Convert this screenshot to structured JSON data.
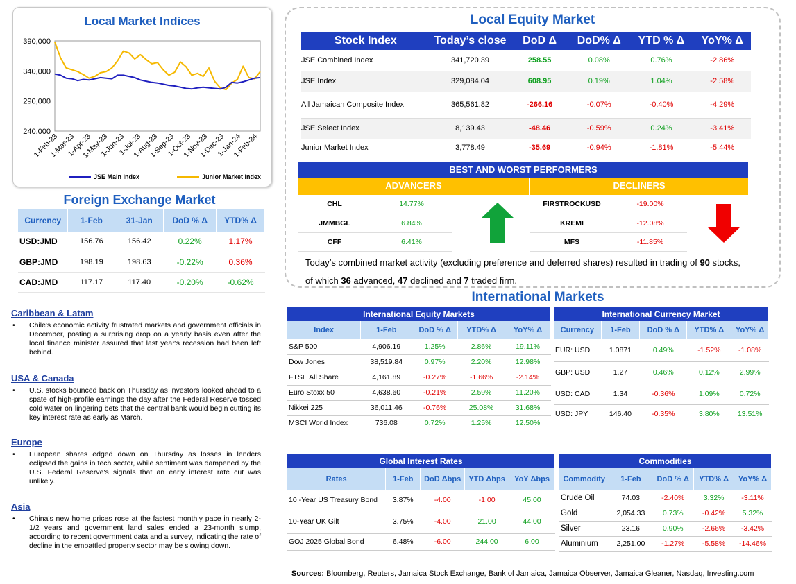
{
  "chart_panel": {
    "title": "Local Market Indices",
    "chart_data": {
      "type": "line",
      "title": "Local Market Indices",
      "x_ticks": [
        "1-Feb-23",
        "1-Mar-23",
        "1-Apr-23",
        "1-May-23",
        "1-Jun-23",
        "1-Jul-23",
        "1-Aug-23",
        "1-Sep-23",
        "1-Oct-23",
        "1-Nov-23",
        "1-Dec-23",
        "1-Jan-24",
        "1-Feb-24"
      ],
      "y_ticks": [
        "390,000",
        "340,000",
        "290,000",
        "240,000"
      ],
      "ylim": [
        240000,
        390000
      ],
      "legend_position": "bottom",
      "series": [
        {
          "name": "JSE Main Index",
          "color": "#1f1fbf",
          "values": [
            335000,
            333000,
            328000,
            327000,
            324000,
            326000,
            325000,
            327000,
            329000,
            328000,
            327000,
            333000,
            333000,
            331000,
            329000,
            325000,
            323000,
            321000,
            320000,
            318000,
            316000,
            315000,
            313000,
            311000,
            310000,
            312000,
            313000,
            312000,
            311000,
            310000,
            313000,
            321000,
            320000,
            322000,
            325000,
            328000,
            329000
          ]
        },
        {
          "name": "Junior Market Index",
          "color": "#f5b800",
          "values": [
            388000,
            362000,
            345000,
            342000,
            339000,
            334000,
            328000,
            331000,
            337000,
            339000,
            345000,
            357000,
            373000,
            370000,
            360000,
            367000,
            359000,
            352000,
            354000,
            342000,
            333000,
            338000,
            355000,
            347000,
            333000,
            336000,
            331000,
            345000,
            323000,
            312000,
            309000,
            320000,
            326000,
            348000,
            329000,
            327000,
            339000
          ]
        }
      ]
    }
  },
  "fx": {
    "title": "Foreign Exchange Market",
    "headers": [
      "Currency",
      "1-Feb",
      "31-Jan",
      "DoD % Δ",
      "YTD% Δ"
    ],
    "rows": [
      {
        "currency": "USD:JMD",
        "feb1": "156.76",
        "jan31": "156.42",
        "dod": "0.22%",
        "ytd": "1.17%",
        "dod_sign": "pos",
        "ytd_sign": "neg"
      },
      {
        "currency": "GBP:JMD",
        "feb1": "198.19",
        "jan31": "198.63",
        "dod": "-0.22%",
        "ytd": "0.36%",
        "dod_sign": "pos",
        "ytd_sign": "neg"
      },
      {
        "currency": "CAD:JMD",
        "feb1": "117.17",
        "jan31": "117.40",
        "dod": "-0.20%",
        "ytd": "-0.62%",
        "dod_sign": "pos",
        "ytd_sign": "pos"
      }
    ]
  },
  "news": [
    {
      "head": "Caribbean & Latam",
      "body": "Chile's economic activity frustrated markets and government officials in December, posting a surprising drop on a yearly basis even after the local finance minister assured that last year's recession had been left behind."
    },
    {
      "head": "USA & Canada",
      "body": "U.S. stocks bounced back on Thursday as investors looked ahead to a spate of high-profile earnings the day after the Federal Reserve tossed cold water on lingering bets that the central bank would begin cutting its key interest rate as early as March."
    },
    {
      "head": "Europe",
      "body": "European shares edged down on Thursday as losses in lenders eclipsed the gains in tech sector, while sentiment was dampened by the U.S. Federal Reserve's signals that an early interest rate cut was unlikely."
    },
    {
      "head": "Asia",
      "body": "China's new home prices rose at the fastest monthly pace in nearly 2-1/2 years and government land sales ended a 23-month slump, according to recent government data and a survey, indicating the rate of decline in the embattled property sector may be slowing down."
    }
  ],
  "equity": {
    "title": "Local Equity Market",
    "headers": [
      "Stock Index",
      "Today’s close",
      "DoD  Δ",
      "DoD% Δ",
      "YTD % Δ",
      "YoY% Δ"
    ],
    "rows": [
      {
        "name": "JSE Combined Index",
        "close": "341,720.39",
        "dod": "258.55",
        "dodp": "0.08%",
        "ytd": "0.76%",
        "yoy": "-2.86%",
        "s": [
          "pos",
          "pos",
          "pos",
          "neg"
        ]
      },
      {
        "name": "JSE Index",
        "close": "329,084.04",
        "dod": "608.95",
        "dodp": "0.19%",
        "ytd": "1.04%",
        "yoy": "-2.58%",
        "s": [
          "pos",
          "pos",
          "pos",
          "neg"
        ]
      },
      {
        "name": "All Jamaican Composite Index",
        "close": "365,561.82",
        "dod": "-266.16",
        "dodp": "-0.07%",
        "ytd": "-0.40%",
        "yoy": "-4.29%",
        "s": [
          "neg",
          "neg",
          "neg",
          "neg"
        ]
      },
      {
        "name": "JSE Select Index",
        "close": "8,139.43",
        "dod": "-48.46",
        "dodp": "-0.59%",
        "ytd": "0.24%",
        "yoy": "-3.41%",
        "s": [
          "neg",
          "neg",
          "pos",
          "neg"
        ]
      },
      {
        "name": "Junior Market Index",
        "close": "3,778.49",
        "dod": "-35.69",
        "dodp": "-0.94%",
        "ytd": "-1.81%",
        "yoy": "-5.44%",
        "s": [
          "neg",
          "neg",
          "neg",
          "neg"
        ]
      }
    ],
    "performers_title": "BEST AND WORST PERFORMERS",
    "advancers_label": "ADVANCERS",
    "decliners_label": "DECLINERS",
    "advancers": [
      {
        "sym": "CHL",
        "pct": "14.77%"
      },
      {
        "sym": "JMMBGL",
        "pct": "6.84%"
      },
      {
        "sym": "CFF",
        "pct": "6.41%"
      }
    ],
    "decliners": [
      {
        "sym": "FIRSTROCKUSD",
        "pct": "-19.00%"
      },
      {
        "sym": "KREMI",
        "pct": "-12.08%"
      },
      {
        "sym": "MFS",
        "pct": "-11.85%"
      }
    ],
    "summary_pre": "Today’s combined market activity (excluding preference and deferred shares) resulted in trading of ",
    "summary_traded": "90",
    "summary_mid1": " stocks, of which ",
    "summary_adv": "36",
    "summary_mid2": " advanced, ",
    "summary_dec": "47",
    "summary_mid3": " declined and ",
    "summary_firm": "7",
    "summary_end": " traded firm."
  },
  "intl": {
    "title": "International Markets",
    "equity": {
      "title": "International Equity Markets",
      "headers": [
        "Index",
        "1-Feb",
        "DoD % Δ",
        "YTD% Δ",
        "YoY% Δ"
      ],
      "rows": [
        {
          "name": "S&P 500",
          "v": "4,906.19",
          "dod": "1.25%",
          "ytd": "2.86%",
          "yoy": "19.11%"
        },
        {
          "name": "Dow Jones",
          "v": "38,519.84",
          "dod": "0.97%",
          "ytd": "2.20%",
          "yoy": "12.98%"
        },
        {
          "name": "FTSE All Share",
          "v": "4,161.89",
          "dod": "-0.27%",
          "ytd": "-1.66%",
          "yoy": "-2.14%"
        },
        {
          "name": "Euro Stoxx 50",
          "v": "4,638.60",
          "dod": "-0.21%",
          "ytd": "2.59%",
          "yoy": "11.20%"
        },
        {
          "name": "Nikkei 225",
          "v": "36,011.46",
          "dod": "-0.76%",
          "ytd": "25.08%",
          "yoy": "31.68%"
        },
        {
          "name": "MSCI World Index",
          "v": "736.08",
          "dod": "0.72%",
          "ytd": "1.25%",
          "yoy": "12.50%"
        }
      ]
    },
    "currency": {
      "title": "International Currency Market",
      "headers": [
        "Currency",
        "1-Feb",
        "DoD % Δ",
        "YTD% Δ",
        "YoY% Δ"
      ],
      "rows": [
        {
          "name": "EUR: USD",
          "v": "1.0871",
          "dod": "0.49%",
          "ytd": "-1.52%",
          "yoy": "-1.08%"
        },
        {
          "name": "GBP: USD",
          "v": "1.27",
          "dod": "0.46%",
          "ytd": "0.12%",
          "yoy": "2.99%"
        },
        {
          "name": "USD: CAD",
          "v": "1.34",
          "dod": "-0.36%",
          "ytd": "1.09%",
          "yoy": "0.72%"
        },
        {
          "name": "USD: JPY",
          "v": "146.40",
          "dod": "-0.35%",
          "ytd": "3.80%",
          "yoy": "13.51%"
        }
      ]
    },
    "rates": {
      "title": "Global Interest Rates",
      "headers": [
        "Rates",
        "1-Feb",
        "DoD Δbps",
        "YTD Δbps",
        "YoY Δbps"
      ],
      "rows": [
        {
          "name": "10 -Year US Treasury Bond",
          "v": "3.87%",
          "dod": "-4.00",
          "ytd": "-1.00",
          "yoy": "45.00"
        },
        {
          "name": "10-Year UK Gilt",
          "v": "3.75%",
          "dod": "-4.00",
          "ytd": "21.00",
          "yoy": "44.00"
        },
        {
          "name": "GOJ 2025 Global Bond",
          "v": "6.48%",
          "dod": "-6.00",
          "ytd": "244.00",
          "yoy": "6.00"
        }
      ]
    },
    "commodities": {
      "title": "Commodities",
      "headers": [
        "Commodity",
        "1-Feb",
        "DoD % Δ",
        "YTD% Δ",
        "YoY% Δ"
      ],
      "rows": [
        {
          "name": "Crude Oil",
          "v": "74.03",
          "dod": "-2.40%",
          "ytd": "3.32%",
          "yoy": "-3.11%"
        },
        {
          "name": "Gold",
          "v": "2,054.33",
          "dod": "0.73%",
          "ytd": "-0.42%",
          "yoy": "5.32%"
        },
        {
          "name": "Silver",
          "v": "23.16",
          "dod": "0.90%",
          "ytd": "-2.66%",
          "yoy": "-3.42%"
        },
        {
          "name": "Aluminium",
          "v": "2,251.00",
          "dod": "-1.27%",
          "ytd": "-5.58%",
          "yoy": "-14.46%"
        }
      ]
    }
  },
  "sources_label": "Sources:",
  "sources_text": " Bloomberg, Reuters, Jamaica Stock Exchange, Bank of Jamaica, Jamaica Observer, Jamaica Gleaner, Nasdaq, Investing.com"
}
